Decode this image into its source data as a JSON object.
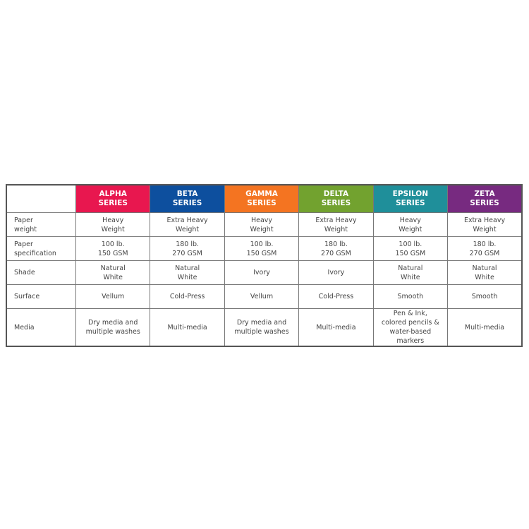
{
  "columns": [
    {
      "name": "ALPHA",
      "sub": "SERIES",
      "color": "#e8174f"
    },
    {
      "name": "BETA",
      "sub": "SERIES",
      "color": "#0d4f9e"
    },
    {
      "name": "GAMMA",
      "sub": "SERIES",
      "color": "#f47421"
    },
    {
      "name": "DELTA",
      "sub": "SERIES",
      "color": "#72a22f"
    },
    {
      "name": "EPSILON",
      "sub": "SERIES",
      "color": "#1f8f9a"
    },
    {
      "name": "ZETA",
      "sub": "SERIES",
      "color": "#772a80"
    }
  ],
  "rows": [
    {
      "label": [
        "Paper",
        "weight"
      ],
      "cells": [
        [
          "Heavy",
          "Weight"
        ],
        [
          "Extra Heavy",
          "Weight"
        ],
        [
          "Heavy",
          "Weight"
        ],
        [
          "Extra Heavy",
          "Weight"
        ],
        [
          "Heavy",
          "Weight"
        ],
        [
          "Extra Heavy",
          "Weight"
        ]
      ]
    },
    {
      "label": [
        "Paper",
        "specification"
      ],
      "cells": [
        [
          "100 lb.",
          "150 GSM"
        ],
        [
          "180 lb.",
          "270 GSM"
        ],
        [
          "100 lb.",
          "150 GSM"
        ],
        [
          "180 lb.",
          "270 GSM"
        ],
        [
          "100 lb.",
          "150 GSM"
        ],
        [
          "180 lb.",
          "270 GSM"
        ]
      ]
    },
    {
      "label": [
        "Shade"
      ],
      "cells": [
        [
          "Natural",
          "White"
        ],
        [
          "Natural",
          "White"
        ],
        [
          "Ivory"
        ],
        [
          "Ivory"
        ],
        [
          "Natural",
          "White"
        ],
        [
          "Natural",
          "White"
        ]
      ]
    },
    {
      "label": [
        "Surface"
      ],
      "cells": [
        [
          "Vellum"
        ],
        [
          "Cold-Press"
        ],
        [
          "Vellum"
        ],
        [
          "Cold-Press"
        ],
        [
          "Smooth"
        ],
        [
          "Smooth"
        ]
      ]
    },
    {
      "label": [
        "Media"
      ],
      "cells": [
        [
          "Dry media and",
          "multiple washes"
        ],
        [
          "Multi-media"
        ],
        [
          "Dry media and",
          "multiple washes"
        ],
        [
          "Multi-media"
        ],
        [
          "Pen & Ink,",
          "colored pencils &",
          "water-based markers"
        ],
        [
          "Multi-media"
        ]
      ]
    }
  ]
}
